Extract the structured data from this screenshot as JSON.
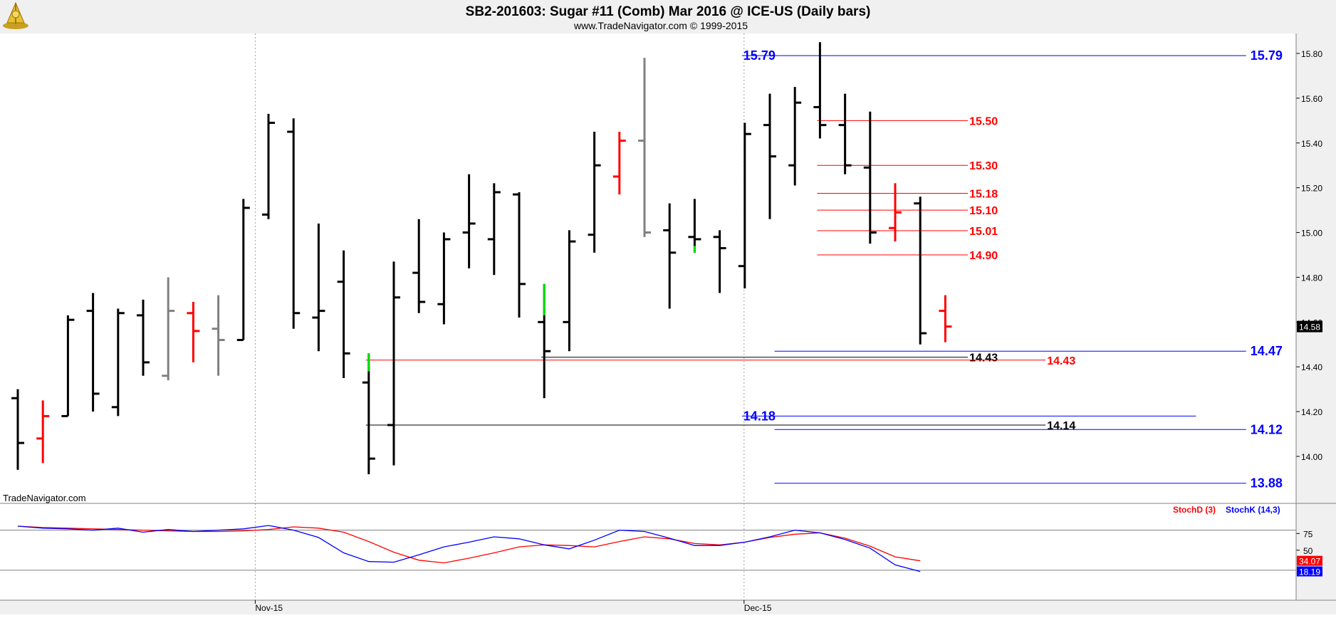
{
  "header": {
    "title": "SB2-201603:  Sugar #11 (Comb) Mar 2016 @ ICE-US  (Daily bars)",
    "subtitle": "www.TradeNavigator.com © 1999-2015",
    "watermark": "TradeNavigator.com"
  },
  "chart_data": [
    {
      "type": "ohlc",
      "title": "SB2-201603:  Sugar #11 (Comb) Mar 2016 @ ICE-US  (Daily bars)",
      "ylim": [
        13.88,
        15.86
      ],
      "y_ticks": [
        "14.00",
        "14.20",
        "14.40",
        "14.60",
        "14.80",
        "15.00",
        "15.20",
        "15.40",
        "15.60",
        "15.80"
      ],
      "x_tick_labels": [
        {
          "label": "Nov-15",
          "bar": 9.5
        },
        {
          "label": "Dec-15",
          "bar": 29
        }
      ],
      "last_price_label": "14.58",
      "colors": {
        "down": "#000000",
        "red": "#ff0000",
        "gray": "#808080",
        "green": "#00dd00",
        "blue": "#0000ff"
      },
      "bars": [
        {
          "o": 14.26,
          "h": 14.3,
          "l": 13.94,
          "c": 14.06,
          "color": "#000000"
        },
        {
          "o": 14.08,
          "h": 14.25,
          "l": 13.97,
          "c": 14.18,
          "color": "#ff0000"
        },
        {
          "o": 14.18,
          "h": 14.63,
          "l": 14.18,
          "c": 14.61,
          "color": "#000000"
        },
        {
          "o": 14.65,
          "h": 14.73,
          "l": 14.2,
          "c": 14.28,
          "color": "#000000"
        },
        {
          "o": 14.22,
          "h": 14.66,
          "l": 14.18,
          "c": 14.64,
          "color": "#000000"
        },
        {
          "o": 14.63,
          "h": 14.7,
          "l": 14.36,
          "c": 14.42,
          "color": "#000000"
        },
        {
          "o": 14.36,
          "h": 14.8,
          "l": 14.34,
          "c": 14.65,
          "color": "#808080"
        },
        {
          "o": 14.64,
          "h": 14.69,
          "l": 14.42,
          "c": 14.56,
          "color": "#ff0000"
        },
        {
          "o": 14.57,
          "h": 14.72,
          "l": 14.36,
          "c": 14.52,
          "color": "#808080"
        },
        {
          "o": 14.52,
          "h": 15.15,
          "l": 14.52,
          "c": 15.11,
          "color": "#000000"
        },
        {
          "o": 15.08,
          "h": 15.53,
          "l": 15.06,
          "c": 15.49,
          "color": "#000000"
        },
        {
          "o": 15.45,
          "h": 15.51,
          "l": 14.57,
          "c": 14.64,
          "color": "#000000"
        },
        {
          "o": 14.62,
          "h": 15.04,
          "l": 14.47,
          "c": 14.65,
          "color": "#000000"
        },
        {
          "o": 14.78,
          "h": 14.92,
          "l": 14.35,
          "c": 14.46,
          "color": "#000000"
        },
        {
          "o": 14.33,
          "h": 14.46,
          "l": 13.92,
          "c": 13.99,
          "color": "#000000",
          "tip": {
            "color": "#00dd00",
            "from": 14.38,
            "to": 14.46
          }
        },
        {
          "o": 14.14,
          "h": 14.87,
          "l": 13.96,
          "c": 14.71,
          "color": "#000000"
        },
        {
          "o": 14.82,
          "h": 15.06,
          "l": 14.64,
          "c": 14.69,
          "color": "#000000"
        },
        {
          "o": 14.68,
          "h": 15.0,
          "l": 14.59,
          "c": 14.97,
          "color": "#000000"
        },
        {
          "o": 15.0,
          "h": 15.26,
          "l": 14.84,
          "c": 15.04,
          "color": "#000000"
        },
        {
          "o": 14.97,
          "h": 15.22,
          "l": 14.81,
          "c": 15.18,
          "color": "#000000"
        },
        {
          "o": 15.17,
          "h": 15.18,
          "l": 14.62,
          "c": 14.77,
          "color": "#000000"
        },
        {
          "o": 14.6,
          "h": 14.77,
          "l": 14.26,
          "c": 14.47,
          "color": "#000000",
          "tip": {
            "color": "#00dd00",
            "from": 14.63,
            "to": 14.77
          }
        },
        {
          "o": 14.6,
          "h": 15.01,
          "l": 14.47,
          "c": 14.96,
          "color": "#000000"
        },
        {
          "o": 14.99,
          "h": 15.45,
          "l": 14.91,
          "c": 15.3,
          "color": "#000000"
        },
        {
          "o": 15.25,
          "h": 15.45,
          "l": 15.17,
          "c": 15.41,
          "color": "#ff0000"
        },
        {
          "o": 15.41,
          "h": 15.78,
          "l": 14.98,
          "c": 15.0,
          "color": "#808080"
        },
        {
          "o": 15.01,
          "h": 15.13,
          "l": 14.66,
          "c": 14.91,
          "color": "#000000"
        },
        {
          "o": 14.98,
          "h": 15.15,
          "l": 14.91,
          "c": 14.97,
          "color": "#000000",
          "tip": {
            "color": "#00dd00",
            "from": 14.91,
            "to": 14.94
          }
        },
        {
          "o": 14.98,
          "h": 15.01,
          "l": 14.73,
          "c": 14.93,
          "color": "#000000"
        },
        {
          "o": 14.85,
          "h": 15.49,
          "l": 14.75,
          "c": 15.44,
          "color": "#000000"
        },
        {
          "o": 15.48,
          "h": 15.62,
          "l": 15.06,
          "c": 15.34,
          "color": "#000000"
        },
        {
          "o": 15.3,
          "h": 15.65,
          "l": 15.21,
          "c": 15.58,
          "color": "#000000"
        },
        {
          "o": 15.56,
          "h": 15.85,
          "l": 15.42,
          "c": 15.48,
          "color": "#000000"
        },
        {
          "o": 15.48,
          "h": 15.62,
          "l": 15.26,
          "c": 15.3,
          "color": "#000000"
        },
        {
          "o": 15.29,
          "h": 15.54,
          "l": 14.95,
          "c": 15.0,
          "color": "#000000"
        },
        {
          "o": 15.02,
          "h": 15.22,
          "l": 14.96,
          "c": 15.09,
          "color": "#ff0000"
        },
        {
          "o": 15.13,
          "h": 15.16,
          "l": 14.5,
          "c": 14.55,
          "color": "#000000"
        },
        {
          "o": 14.65,
          "h": 14.72,
          "l": 14.51,
          "c": 14.58,
          "color": "#ff0000"
        }
      ],
      "levels": [
        {
          "value": "15.79",
          "y": 15.79,
          "from": 29,
          "to": 49,
          "color": "#0000ff",
          "labels": [
            {
              "pos": "left"
            },
            {
              "pos": "right"
            }
          ]
        },
        {
          "value": "15.50",
          "y": 15.5,
          "from": 32,
          "to": 37.9,
          "color": "#ff0000",
          "labels": [
            {
              "pos": "end"
            }
          ]
        },
        {
          "value": "15.30",
          "y": 15.3,
          "from": 32,
          "to": 37.9,
          "color": "#ff0000",
          "labels": [
            {
              "pos": "end"
            }
          ]
        },
        {
          "value": "15.18",
          "y": 15.175,
          "from": 32,
          "to": 37.9,
          "color": "#ff0000",
          "labels": [
            {
              "pos": "end"
            }
          ]
        },
        {
          "value": "15.10",
          "y": 15.1,
          "from": 32,
          "to": 37.9,
          "color": "#ff0000",
          "labels": [
            {
              "pos": "end"
            }
          ]
        },
        {
          "value": "15.01",
          "y": 15.008,
          "from": 32,
          "to": 37.9,
          "color": "#ff0000",
          "labels": [
            {
              "pos": "end"
            }
          ]
        },
        {
          "value": "14.90",
          "y": 14.9,
          "from": 32,
          "to": 37.9,
          "color": "#ff0000",
          "labels": [
            {
              "pos": "end"
            }
          ]
        },
        {
          "value": "14.47",
          "y": 14.47,
          "from": 30.3,
          "to": 49,
          "color": "#0000ff",
          "labels": [
            {
              "pos": "right"
            }
          ]
        },
        {
          "value": "14.43",
          "y": 14.443,
          "from": 21,
          "to": 37.9,
          "color": "#000000",
          "labels": [
            {
              "pos": "end"
            }
          ]
        },
        {
          "value": "14.43",
          "y": 14.43,
          "from": 14,
          "to": 41,
          "color": "#ff0000",
          "labels": [
            {
              "pos": "end"
            }
          ]
        },
        {
          "value": "14.18",
          "y": 14.18,
          "from": 29,
          "to": 47,
          "color": "#0000ff",
          "labels": [
            {
              "pos": "left"
            }
          ]
        },
        {
          "value": "14.14",
          "y": 14.14,
          "from": 14,
          "to": 41,
          "color": "#000000",
          "labels": [
            {
              "pos": "end"
            }
          ]
        },
        {
          "value": "14.12",
          "y": 14.12,
          "from": 30.3,
          "to": 49,
          "color": "#0000ff",
          "labels": [
            {
              "pos": "right"
            }
          ]
        },
        {
          "value": "13.88",
          "y": 13.88,
          "from": 30.3,
          "to": 49,
          "color": "#0000ff",
          "labels": [
            {
              "pos": "right"
            }
          ]
        }
      ]
    },
    {
      "type": "line",
      "ylim": [
        0,
        100
      ],
      "y_ticks": [
        "50",
        "75"
      ],
      "reference_lines": [
        80,
        20
      ],
      "legend": [
        {
          "label": "StochD (3)",
          "color": "#ff0000"
        },
        {
          "label": "StochK (14,3)",
          "color": "#0000ff"
        }
      ],
      "last_value_labels": [
        {
          "label": "34.07",
          "color": "#ff0000",
          "value": 34.07
        },
        {
          "label": "18.19",
          "color": "#0000ff",
          "value": 18.19
        }
      ],
      "x_tick_labels": [
        "Nov-15",
        "Dec-15"
      ],
      "series": [
        {
          "name": "StochD (3)",
          "color": "#ff0000",
          "values": [
            86,
            84,
            83,
            82,
            81,
            80,
            79,
            78,
            78,
            79,
            81,
            85,
            83,
            77,
            63,
            47,
            35,
            31,
            38,
            46,
            55,
            58,
            57,
            55,
            63,
            70,
            67,
            60,
            58,
            62,
            69,
            74,
            76,
            68,
            56,
            40,
            34
          ]
        },
        {
          "name": "StochK (14,3)",
          "color": "#0000ff",
          "values": [
            86,
            83,
            82,
            80,
            83,
            77,
            81,
            78,
            80,
            82,
            87,
            80,
            69,
            46,
            33,
            32,
            43,
            55,
            62,
            70,
            67,
            58,
            52,
            65,
            80,
            78,
            68,
            57,
            57,
            62,
            70,
            80,
            76,
            66,
            53,
            28,
            18
          ]
        }
      ]
    }
  ]
}
